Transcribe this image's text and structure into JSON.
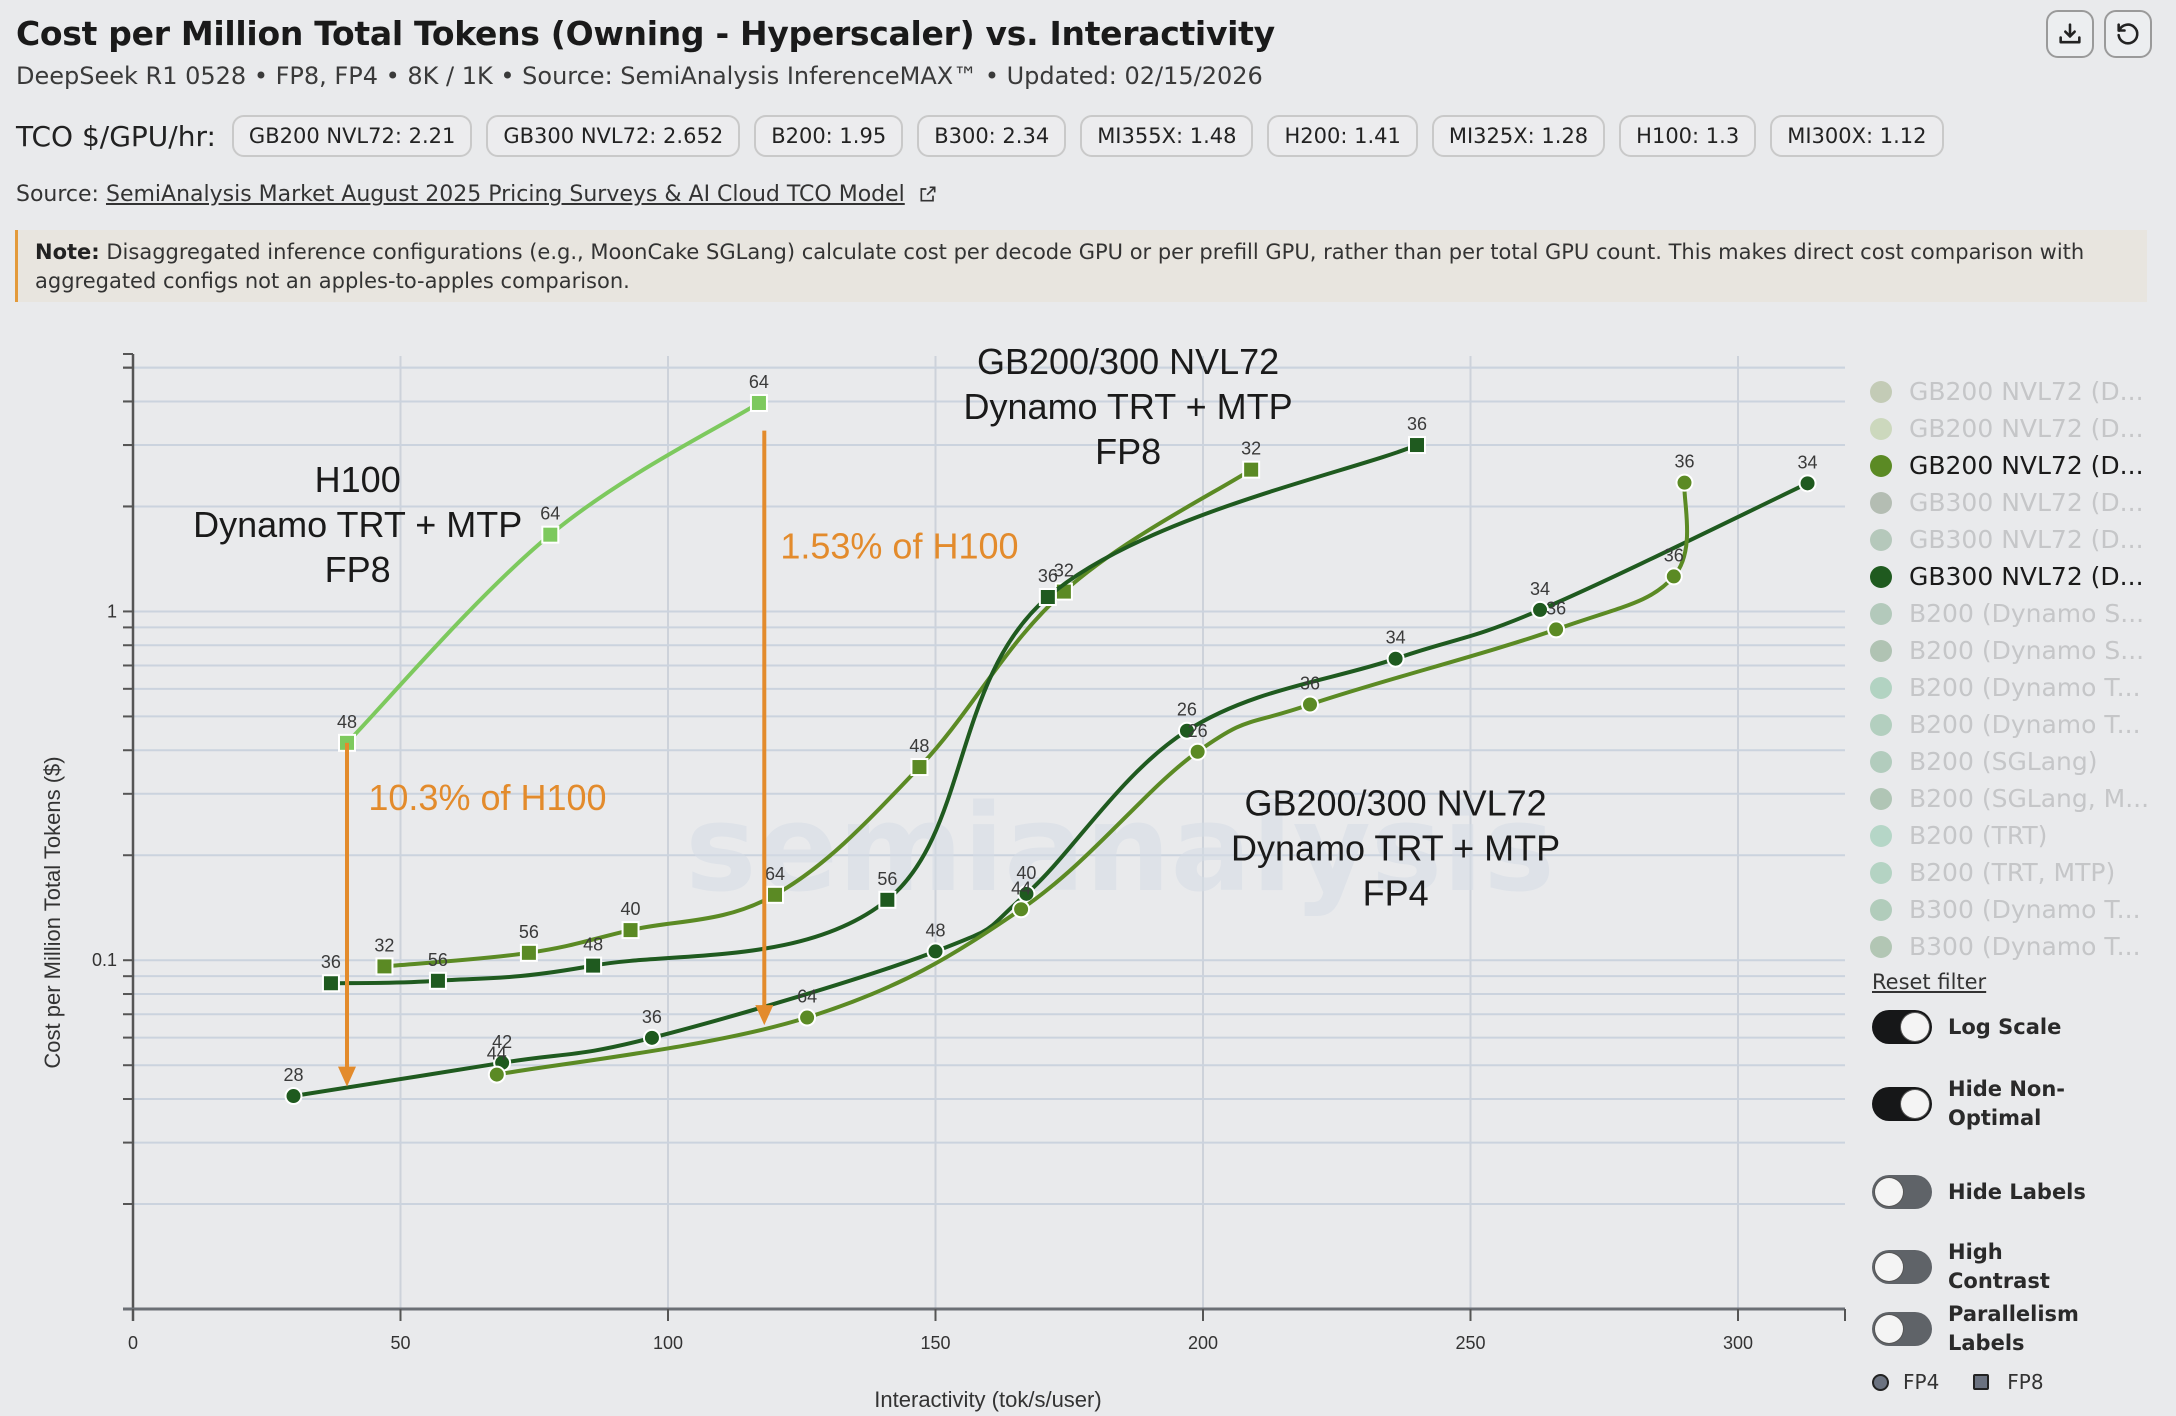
{
  "header": {
    "title": "Cost per Million Total Tokens (Owning - Hyperscaler) vs. Interactivity",
    "subtitle": "DeepSeek R1 0528 • FP8, FP4 • 8K / 1K • Source: SemiAnalysis InferenceMAX™ • Updated: 02/15/2026",
    "download_icon": "download-icon",
    "reset_icon": "reset-view-icon"
  },
  "tco": {
    "label": "TCO $/GPU/hr:",
    "chips": [
      "GB200 NVL72: 2.21",
      "GB300 NVL72: 2.652",
      "B200: 1.95",
      "B300: 2.34",
      "MI355X: 1.48",
      "H200: 1.41",
      "MI325X: 1.28",
      "H100: 1.3",
      "MI300X: 1.12"
    ]
  },
  "source": {
    "prefix": "Source:",
    "link_text": "SemiAnalysis Market August 2025 Pricing Surveys & AI Cloud TCO Model",
    "link_icon": "external-link-icon"
  },
  "note": {
    "label": "Note:",
    "text": "Disaggregated inference configurations (e.g., MoonCake SGLang) calculate cost per decode GPU or per prefill GPU, rather than per total GPU count. This makes direct cost comparison with aggregated configs not an apples-to-apples comparison."
  },
  "legend": {
    "items": [
      {
        "label": "GB200 NVL72 (D...",
        "color": "#c3cbb6",
        "active": false
      },
      {
        "label": "GB200 NVL72 (D...",
        "color": "#ccd8bd",
        "active": false
      },
      {
        "label": "GB200 NVL72 (D...",
        "color": "#5b8a24",
        "active": true
      },
      {
        "label": "GB300 NVL72 (D...",
        "color": "#b4bdb3",
        "active": false
      },
      {
        "label": "GB300 NVL72 (D...",
        "color": "#b5c8bb",
        "active": false
      },
      {
        "label": "GB300 NVL72 (D...",
        "color": "#1f5a1f",
        "active": true
      },
      {
        "label": "B200 (Dynamo S...",
        "color": "#b3c9bb",
        "active": false
      },
      {
        "label": "B200 (Dynamo S...",
        "color": "#b0c3b3",
        "active": false
      },
      {
        "label": "B200 (Dynamo T...",
        "color": "#b2d3c2",
        "active": false
      },
      {
        "label": "B200 (Dynamo T...",
        "color": "#b3cfbf",
        "active": false
      },
      {
        "label": "B200 (SGLang)",
        "color": "#b2ccbd",
        "active": false
      },
      {
        "label": "B200 (SGLang, M...",
        "color": "#b0c5b5",
        "active": false
      },
      {
        "label": "B200 (TRT)",
        "color": "#b5d6c7",
        "active": false
      },
      {
        "label": "B200 (TRT, MTP)",
        "color": "#b4d3c3",
        "active": false
      },
      {
        "label": "B300 (Dynamo T...",
        "color": "#b1ccbb",
        "active": false
      },
      {
        "label": "B300 (Dynamo T...",
        "color": "#b2c6b4",
        "active": false
      }
    ],
    "reset_label": "Reset filter"
  },
  "toggles": [
    {
      "label": "Log Scale",
      "on": true
    },
    {
      "label": "Hide Non-Optimal",
      "on": true
    },
    {
      "label": "Hide Labels",
      "on": false
    },
    {
      "label": "High Contrast",
      "on": false
    },
    {
      "label": "Parallelism Labels",
      "on": false
    }
  ],
  "shape_legend": {
    "circle": "FP4",
    "square": "FP8"
  },
  "watermark": "semianalysis",
  "chart_data": {
    "type": "line",
    "title": "Cost per Million Total Tokens (Owning - Hyperscaler) vs. Interactivity",
    "xlabel": "Interactivity (tok/s/user)",
    "ylabel": "Cost per Million Total Tokens ($)",
    "xlim": [
      0,
      320
    ],
    "ylim": [
      0.01,
      5.4
    ],
    "yscale": "log",
    "xticks": [
      0,
      50,
      100,
      150,
      200,
      250,
      300
    ],
    "yticks": [
      {
        "value": 0.1,
        "label": "0.1"
      },
      {
        "value": 1,
        "label": "1"
      }
    ],
    "grid": true,
    "legend_position": "right",
    "series": [
      {
        "name": "H100 (Dynamo TRT, MTP) FP8",
        "precision": "FP8",
        "marker": "square",
        "color": "#7dc95e",
        "points": [
          {
            "x": 40,
            "y": 0.42,
            "label": "48"
          },
          {
            "x": 78,
            "y": 1.66,
            "label": "64"
          },
          {
            "x": 117,
            "y": 3.96,
            "label": "64"
          }
        ]
      },
      {
        "name": "GB200 NVL72 (Dynamo TRT, MTP) FP8",
        "precision": "FP8",
        "marker": "square",
        "color": "#5b8a24",
        "points": [
          {
            "x": 47,
            "y": 0.096,
            "label": "32"
          },
          {
            "x": 74,
            "y": 0.105,
            "label": "56"
          },
          {
            "x": 93,
            "y": 0.122,
            "label": "40"
          },
          {
            "x": 120,
            "y": 0.154,
            "label": "64"
          },
          {
            "x": 147,
            "y": 0.358,
            "label": "48"
          },
          {
            "x": 174,
            "y": 1.14,
            "label": "32"
          },
          {
            "x": 209,
            "y": 2.55,
            "label": "32"
          }
        ]
      },
      {
        "name": "GB300 NVL72 (Dynamo TRT, MTP) FP8",
        "precision": "FP8",
        "marker": "square",
        "color": "#1f5a1f",
        "points": [
          {
            "x": 37,
            "y": 0.0859,
            "label": "36"
          },
          {
            "x": 57,
            "y": 0.0873,
            "label": "56"
          },
          {
            "x": 86,
            "y": 0.0965,
            "label": "48"
          },
          {
            "x": 141,
            "y": 0.149,
            "label": "56"
          },
          {
            "x": 171,
            "y": 1.1,
            "label": "36"
          },
          {
            "x": 240,
            "y": 3.0,
            "label": "36"
          }
        ]
      },
      {
        "name": "GB300 NVL72 (Dynamo TRT, MTP) FP4",
        "precision": "FP4",
        "marker": "circle",
        "color": "#1f5a1f",
        "points": [
          {
            "x": 30,
            "y": 0.0408,
            "label": "28"
          },
          {
            "x": 69,
            "y": 0.0508,
            "label": "42"
          },
          {
            "x": 97,
            "y": 0.0599,
            "label": "36"
          },
          {
            "x": 150,
            "y": 0.106,
            "label": "48"
          },
          {
            "x": 167,
            "y": 0.155,
            "label": "40"
          },
          {
            "x": 197,
            "y": 0.455,
            "label": "26"
          },
          {
            "x": 236,
            "y": 0.732,
            "label": "34"
          },
          {
            "x": 263,
            "y": 1.01,
            "label": "34"
          },
          {
            "x": 313,
            "y": 2.33,
            "label": "34"
          }
        ]
      },
      {
        "name": "GB200 NVL72 (Dynamo TRT, MTP) FP4",
        "precision": "FP4",
        "marker": "circle",
        "color": "#5b8a24",
        "points": [
          {
            "x": 68,
            "y": 0.047,
            "label": "44"
          },
          {
            "x": 126,
            "y": 0.0685,
            "label": "64"
          },
          {
            "x": 166,
            "y": 0.14,
            "label": "44"
          },
          {
            "x": 199,
            "y": 0.396,
            "label": "26"
          },
          {
            "x": 220,
            "y": 0.541,
            "label": "36"
          },
          {
            "x": 266,
            "y": 0.888,
            "label": "36"
          },
          {
            "x": 288,
            "y": 1.26,
            "label": "36"
          },
          {
            "x": 290,
            "y": 2.34,
            "label": "36"
          }
        ]
      }
    ],
    "annotations": [
      {
        "text": "H100\nDynamo TRT + MTP\nFP8",
        "x": 42,
        "y": 2.2,
        "color": "#1a1a1a"
      },
      {
        "text": "GB200/300 NVL72\nDynamo TRT + MTP\nFP8",
        "x": 186,
        "y": 4.8,
        "color": "#1a1a1a"
      },
      {
        "text": "GB200/300 NVL72\nDynamo TRT + MTP\nFP4",
        "x": 236,
        "y": 0.26,
        "color": "#1a1a1a"
      },
      {
        "text": "10.3% of H100",
        "x": 44,
        "y": 0.27,
        "color": "#e38b2c",
        "anchor": "start"
      },
      {
        "text": "1.53% of H100",
        "x": 121,
        "y": 1.42,
        "color": "#e38b2c",
        "anchor": "start"
      }
    ],
    "arrows": [
      {
        "x": 40,
        "from": 0.42,
        "to": 0.044,
        "color": "#e38b2c"
      },
      {
        "x": 118,
        "from": 3.3,
        "to": 0.066,
        "color": "#e38b2c"
      }
    ]
  }
}
